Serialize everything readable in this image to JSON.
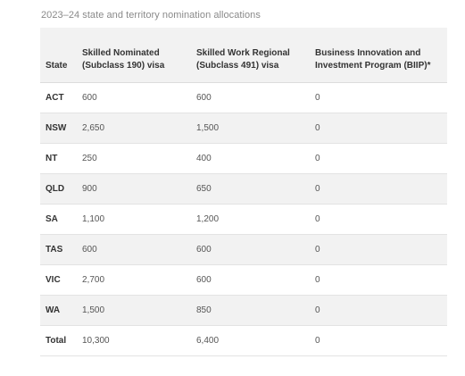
{
  "caption": "2023–24 state and territory nomination allocations",
  "table": {
    "headers": {
      "state": "State",
      "subclass190": "Skilled Nominated (Subclass 190) visa",
      "subclass491": "Skilled Work Regional (Subclass 491) visa",
      "biip": "Business Innovation and Investment Program (BIIP)*"
    },
    "rows": [
      {
        "state": "ACT",
        "subclass190": "600",
        "subclass491": "600",
        "biip": "0"
      },
      {
        "state": "NSW",
        "subclass190": "2,650",
        "subclass491": "1,500",
        "biip": "0"
      },
      {
        "state": "NT",
        "subclass190": "250",
        "subclass491": "400",
        "biip": "0"
      },
      {
        "state": "QLD",
        "subclass190": "900",
        "subclass491": "650",
        "biip": "0"
      },
      {
        "state": "SA",
        "subclass190": "1,100",
        "subclass491": "1,200",
        "biip": "0"
      },
      {
        "state": "TAS",
        "subclass190": "600",
        "subclass491": "600",
        "biip": "0"
      },
      {
        "state": "VIC",
        "subclass190": "2,700",
        "subclass491": "600",
        "biip": "0"
      },
      {
        "state": "WA",
        "subclass190": "1,500",
        "subclass491": "850",
        "biip": "0"
      },
      {
        "state": "Total",
        "subclass190": "10,300",
        "subclass491": "6,400",
        "biip": "0"
      }
    ]
  }
}
